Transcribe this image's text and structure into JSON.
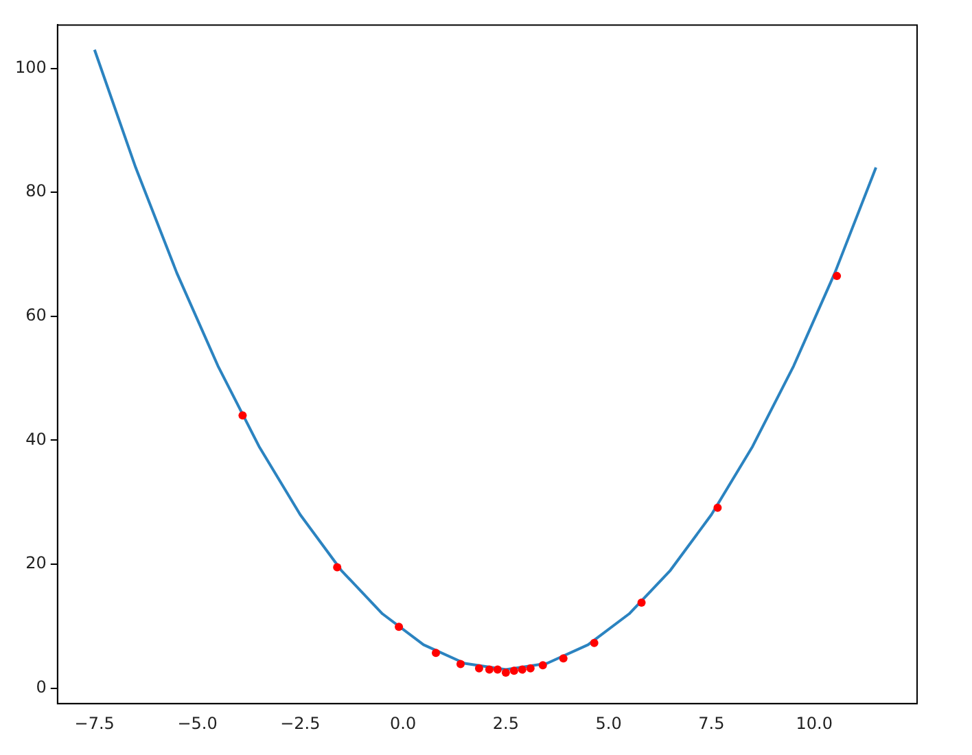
{
  "chart_data": {
    "type": "scatter",
    "xlim": [
      -8.4,
      12.5
    ],
    "xticks": [
      {
        "value": -7.5,
        "label": "−7.5"
      },
      {
        "value": -5,
        "label": "−5.0"
      },
      {
        "value": -2.5,
        "label": "−2.5"
      },
      {
        "value": 0,
        "label": "0.0"
      },
      {
        "value": 2.5,
        "label": "2.5"
      },
      {
        "value": 5,
        "label": "5.0"
      },
      {
        "value": 7.5,
        "label": "7.5"
      },
      {
        "value": 10,
        "label": "10.0"
      }
    ],
    "ylim": [
      -2.5,
      107
    ],
    "yticks": [
      0,
      20,
      40,
      60,
      80,
      100
    ],
    "grid": false,
    "legend": false,
    "series": [
      {
        "color": "#ff0000",
        "marker": "circle",
        "x": [
          -3.9,
          -1.6,
          -0.1,
          0.8,
          1.4,
          1.85,
          2.1,
          2.3,
          2.5,
          2.7,
          2.9,
          3.1,
          3.4,
          3.9,
          4.65,
          5.8,
          7.65,
          10.55
        ],
        "values": [
          44,
          19.5,
          9.9,
          5.7,
          3.9,
          3.2,
          3.0,
          3.0,
          2.5,
          2.8,
          3.0,
          3.2,
          3.7,
          4.8,
          7.3,
          13.8,
          29.1,
          66.5
        ]
      },
      {
        "type": "line",
        "color": "#2b83c0",
        "marker": "none",
        "line_style": "solid",
        "x": [
          -7.5,
          -6.5,
          -5.5,
          -4.5,
          -3.5,
          -2.5,
          -1.5,
          -0.5,
          0.5,
          1.5,
          2.5,
          3.5,
          4.5,
          5.5,
          6.5,
          7.5,
          8.5,
          9.5,
          10.5,
          11.5
        ],
        "values": [
          103,
          84,
          67,
          52,
          39,
          28,
          19,
          12,
          7,
          4,
          3,
          4,
          7,
          12,
          19,
          28,
          39,
          52,
          67,
          84
        ]
      }
    ]
  }
}
